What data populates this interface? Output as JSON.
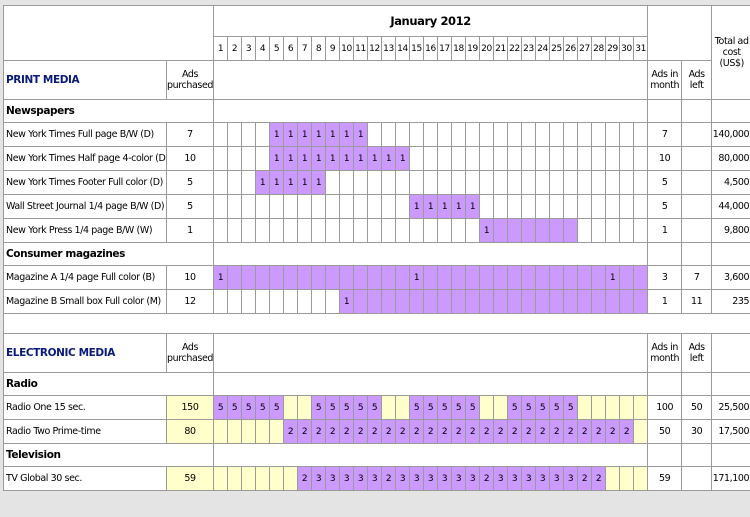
{
  "header": {
    "month": "January 2012",
    "days": [
      1,
      2,
      3,
      4,
      5,
      6,
      7,
      8,
      9,
      10,
      11,
      12,
      13,
      14,
      15,
      16,
      17,
      18,
      19,
      20,
      21,
      22,
      23,
      24,
      25,
      26,
      27,
      28,
      29,
      30,
      31
    ],
    "total_cost": "Total ad cost (US$)"
  },
  "colors": {
    "purple": "#cc99ff",
    "yellow": "#ffffcc",
    "white": "#ffffff"
  },
  "sections": [
    {
      "title": "PRINT MEDIA",
      "ads_purchased": "Ads purchased",
      "ads_in_month": "Ads in month",
      "ads_left": "Ads left",
      "groups": [
        {
          "title": "Newspapers",
          "rows": [
            {
              "name": "New York Times Full page B/W (D)",
              "purchased": 7,
              "purchased_fill": "white",
              "days": [
                null,
                null,
                null,
                null,
                1,
                1,
                1,
                1,
                1,
                1,
                1,
                null,
                null,
                null,
                null,
                null,
                null,
                null,
                null,
                null,
                null,
                null,
                null,
                null,
                null,
                null,
                null,
                null,
                null,
                null,
                null
              ],
              "fill": [
                "white",
                "white",
                "white",
                "white",
                "purple",
                "purple",
                "purple",
                "purple",
                "purple",
                "purple",
                "purple",
                "white",
                "white",
                "white",
                "white",
                "white",
                "white",
                "white",
                "white",
                "white",
                "white",
                "white",
                "white",
                "white",
                "white",
                "white",
                "white",
                "white",
                "white",
                "white",
                "white"
              ],
              "in_month": 7,
              "left": null,
              "cost": "140,000"
            },
            {
              "name": "New York Times Half page 4-color (D)",
              "purchased": 10,
              "purchased_fill": "white",
              "days": [
                null,
                null,
                null,
                null,
                1,
                1,
                1,
                1,
                1,
                1,
                1,
                1,
                1,
                1,
                null,
                null,
                null,
                null,
                null,
                null,
                null,
                null,
                null,
                null,
                null,
                null,
                null,
                null,
                null,
                null,
                null
              ],
              "fill": [
                "white",
                "white",
                "white",
                "white",
                "purple",
                "purple",
                "purple",
                "purple",
                "purple",
                "purple",
                "purple",
                "purple",
                "purple",
                "purple",
                "white",
                "white",
                "white",
                "white",
                "white",
                "white",
                "white",
                "white",
                "white",
                "white",
                "white",
                "white",
                "white",
                "white",
                "white",
                "white",
                "white"
              ],
              "in_month": 10,
              "left": null,
              "cost": "80,000"
            },
            {
              "name": "New York Times Footer Full color (D)",
              "purchased": 5,
              "purchased_fill": "white",
              "days": [
                null,
                null,
                null,
                1,
                1,
                1,
                1,
                1,
                null,
                null,
                null,
                null,
                null,
                null,
                null,
                null,
                null,
                null,
                null,
                null,
                null,
                null,
                null,
                null,
                null,
                null,
                null,
                null,
                null,
                null,
                null
              ],
              "fill": [
                "white",
                "white",
                "white",
                "purple",
                "purple",
                "purple",
                "purple",
                "purple",
                "white",
                "white",
                "white",
                "white",
                "white",
                "white",
                "white",
                "white",
                "white",
                "white",
                "white",
                "white",
                "white",
                "white",
                "white",
                "white",
                "white",
                "white",
                "white",
                "white",
                "white",
                "white",
                "white"
              ],
              "in_month": 5,
              "left": null,
              "cost": "4,500"
            },
            {
              "name": "Wall Street Journal 1/4 page B/W (D)",
              "purchased": 5,
              "purchased_fill": "white",
              "days": [
                null,
                null,
                null,
                null,
                null,
                null,
                null,
                null,
                null,
                null,
                null,
                null,
                null,
                null,
                1,
                1,
                1,
                1,
                1,
                null,
                null,
                null,
                null,
                null,
                null,
                null,
                null,
                null,
                null,
                null,
                null
              ],
              "fill": [
                "white",
                "white",
                "white",
                "white",
                "white",
                "white",
                "white",
                "white",
                "white",
                "white",
                "white",
                "white",
                "white",
                "white",
                "purple",
                "purple",
                "purple",
                "purple",
                "purple",
                "white",
                "white",
                "white",
                "white",
                "white",
                "white",
                "white",
                "white",
                "white",
                "white",
                "white",
                "white"
              ],
              "in_month": 5,
              "left": null,
              "cost": "44,000"
            },
            {
              "name": "New York Press  1/4 page B/W (W)",
              "purchased": 1,
              "purchased_fill": "white",
              "days": [
                null,
                null,
                null,
                null,
                null,
                null,
                null,
                null,
                null,
                null,
                null,
                null,
                null,
                null,
                null,
                null,
                null,
                null,
                null,
                1,
                null,
                null,
                null,
                null,
                null,
                null,
                null,
                null,
                null,
                null,
                null
              ],
              "fill": [
                "white",
                "white",
                "white",
                "white",
                "white",
                "white",
                "white",
                "white",
                "white",
                "white",
                "white",
                "white",
                "white",
                "white",
                "white",
                "white",
                "white",
                "white",
                "white",
                "purple",
                "purple",
                "purple",
                "purple",
                "purple",
                "purple",
                "purple",
                "white",
                "white",
                "white",
                "white",
                "white"
              ],
              "in_month": 1,
              "left": null,
              "cost": "9,800"
            }
          ]
        },
        {
          "title": "Consumer magazines",
          "rows": [
            {
              "name": "Magazine A 1/4 page Full color (B)",
              "purchased": 10,
              "purchased_fill": "white",
              "days": [
                1,
                null,
                null,
                null,
                null,
                null,
                null,
                null,
                null,
                null,
                null,
                null,
                null,
                null,
                1,
                null,
                null,
                null,
                null,
                null,
                null,
                null,
                null,
                null,
                null,
                null,
                null,
                null,
                1,
                null,
                null
              ],
              "fill": [
                "purple",
                "purple",
                "purple",
                "purple",
                "purple",
                "purple",
                "purple",
                "purple",
                "purple",
                "purple",
                "purple",
                "purple",
                "purple",
                "purple",
                "purple",
                "purple",
                "purple",
                "purple",
                "purple",
                "purple",
                "purple",
                "purple",
                "purple",
                "purple",
                "purple",
                "purple",
                "purple",
                "purple",
                "purple",
                "purple",
                "purple"
              ],
              "in_month": 3,
              "left": 7,
              "cost": "3,600"
            },
            {
              "name": "Magazine B Small box Full color (M)",
              "purchased": 12,
              "purchased_fill": "white",
              "days": [
                null,
                null,
                null,
                null,
                null,
                null,
                null,
                null,
                null,
                1,
                null,
                null,
                null,
                null,
                null,
                null,
                null,
                null,
                null,
                null,
                null,
                null,
                null,
                null,
                null,
                null,
                null,
                null,
                null,
                null,
                null
              ],
              "fill": [
                "white",
                "white",
                "white",
                "white",
                "white",
                "white",
                "white",
                "white",
                "white",
                "purple",
                "purple",
                "purple",
                "purple",
                "purple",
                "purple",
                "purple",
                "purple",
                "purple",
                "purple",
                "purple",
                "purple",
                "purple",
                "purple",
                "purple",
                "purple",
                "purple",
                "purple",
                "purple",
                "purple",
                "purple",
                "purple"
              ],
              "in_month": 1,
              "left": 11,
              "cost": "235"
            }
          ]
        }
      ]
    },
    {
      "title": "ELECTRONIC MEDIA",
      "ads_purchased": "Ads purchased",
      "ads_in_month": "Ads in month",
      "ads_left": "Ads left",
      "groups": [
        {
          "title": "Radio",
          "rows": [
            {
              "name": "Radio One 15 sec.",
              "purchased": 150,
              "purchased_fill": "yellow",
              "days": [
                5,
                5,
                5,
                5,
                5,
                null,
                null,
                5,
                5,
                5,
                5,
                5,
                null,
                null,
                5,
                5,
                5,
                5,
                5,
                null,
                null,
                5,
                5,
                5,
                5,
                5,
                null,
                null,
                null,
                null,
                null
              ],
              "fill": [
                "purple",
                "purple",
                "purple",
                "purple",
                "purple",
                "yellow",
                "yellow",
                "purple",
                "purple",
                "purple",
                "purple",
                "purple",
                "yellow",
                "yellow",
                "purple",
                "purple",
                "purple",
                "purple",
                "purple",
                "yellow",
                "yellow",
                "purple",
                "purple",
                "purple",
                "purple",
                "purple",
                "yellow",
                "yellow",
                "yellow",
                "yellow",
                "yellow"
              ],
              "in_month": 100,
              "left": 50,
              "cost": "25,500"
            },
            {
              "name": "Radio Two Prime-time",
              "purchased": 80,
              "purchased_fill": "yellow",
              "days": [
                null,
                null,
                null,
                null,
                null,
                2,
                2,
                2,
                2,
                2,
                2,
                2,
                2,
                2,
                2,
                2,
                2,
                2,
                2,
                2,
                2,
                2,
                2,
                2,
                2,
                2,
                2,
                2,
                2,
                2,
                null
              ],
              "fill": [
                "yellow",
                "yellow",
                "yellow",
                "yellow",
                "yellow",
                "purple",
                "purple",
                "purple",
                "purple",
                "purple",
                "purple",
                "purple",
                "purple",
                "purple",
                "purple",
                "purple",
                "purple",
                "purple",
                "purple",
                "purple",
                "purple",
                "purple",
                "purple",
                "purple",
                "purple",
                "purple",
                "purple",
                "purple",
                "purple",
                "purple",
                "yellow"
              ],
              "in_month": 50,
              "left": 30,
              "cost": "17,500"
            }
          ]
        },
        {
          "title": "Television",
          "rows": [
            {
              "name": "TV Global 30 sec.",
              "purchased": 59,
              "purchased_fill": "yellow",
              "days": [
                null,
                null,
                null,
                null,
                null,
                null,
                2,
                3,
                3,
                3,
                3,
                3,
                2,
                3,
                3,
                3,
                3,
                3,
                3,
                2,
                3,
                3,
                3,
                3,
                3,
                3,
                2,
                2,
                null,
                null,
                null
              ],
              "fill": [
                "yellow",
                "yellow",
                "yellow",
                "yellow",
                "yellow",
                "yellow",
                "purple",
                "purple",
                "purple",
                "purple",
                "purple",
                "purple",
                "purple",
                "purple",
                "purple",
                "purple",
                "purple",
                "purple",
                "purple",
                "purple",
                "purple",
                "purple",
                "purple",
                "purple",
                "purple",
                "purple",
                "purple",
                "purple",
                "yellow",
                "yellow",
                "yellow"
              ],
              "in_month": 59,
              "left": null,
              "cost": "171,100"
            }
          ]
        }
      ]
    }
  ]
}
